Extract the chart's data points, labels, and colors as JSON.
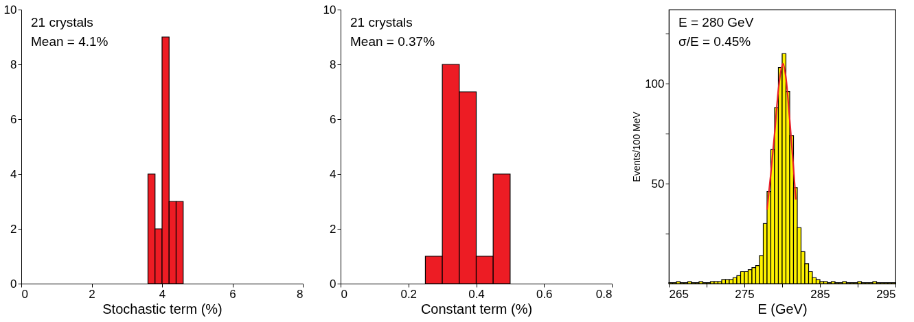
{
  "chart_data": [
    {
      "type": "histogram",
      "xlabel": "Stochastic term (%)",
      "annotations": [
        "21 crystals",
        "Mean = 4.1%"
      ],
      "bins": [
        3.6,
        3.8,
        4.0,
        4.2,
        4.4,
        4.6
      ],
      "values": [
        4,
        2,
        9,
        3,
        3
      ],
      "color": "#ed1c24",
      "xlim": [
        0,
        8
      ],
      "xticks": [
        0,
        2,
        4,
        6,
        8
      ],
      "ylim": [
        0,
        10
      ],
      "yticks": [
        0,
        2,
        4,
        6,
        8,
        10
      ]
    },
    {
      "type": "histogram",
      "xlabel": "Constant term (%)",
      "annotations": [
        "21 crystals",
        "Mean = 0.37%"
      ],
      "bins": [
        0.25,
        0.3,
        0.35,
        0.4,
        0.45,
        0.5
      ],
      "values": [
        1,
        8,
        7,
        1,
        4
      ],
      "color": "#ed1c24",
      "xlim": [
        0,
        0.8
      ],
      "xticks": [
        0,
        0.2,
        0.4,
        0.6,
        0.8
      ],
      "ylim": [
        0,
        10
      ],
      "yticks": [
        0,
        2,
        4,
        6,
        8,
        10
      ]
    },
    {
      "type": "histogram",
      "xlabel": "E (GeV)",
      "ylabel": "Events/100 MeV",
      "annotations": [
        "E = 280 GeV",
        "σ/E = 0.45%"
      ],
      "xlim": [
        265,
        295
      ],
      "xticks": [
        265,
        {
          "value": 270,
          "label": null
        },
        275,
        {
          "value": 280,
          "label": null
        },
        285,
        {
          "value": 290,
          "label": null
        },
        295
      ],
      "ylim": [
        0,
        137
      ],
      "yticks": [
        {
          "value": 25,
          "label": null
        },
        50,
        {
          "value": 75,
          "label": null
        },
        100,
        {
          "value": 125,
          "label": null
        }
      ],
      "series": [
        {
          "type": "histogram",
          "color": "#fff200",
          "bins": [
            265,
            265.5,
            266,
            266.5,
            267,
            267.5,
            268,
            268.5,
            269,
            269.5,
            270,
            270.5,
            271,
            271.5,
            272,
            272.5,
            273,
            273.5,
            274,
            274.5,
            275,
            275.5,
            276,
            276.5,
            277,
            277.5,
            278,
            278.5,
            279,
            279.5,
            280,
            280.5,
            281,
            281.5,
            282,
            282.5,
            283,
            283.5,
            284,
            284.5,
            285,
            285.5,
            286,
            286.5,
            287,
            287.5,
            288,
            288.5,
            289,
            289.5,
            290,
            290.5,
            291,
            291.5,
            292,
            292.5,
            293,
            293.5,
            294,
            294.5,
            295
          ],
          "values": [
            0.5,
            0.5,
            1,
            0.5,
            0.5,
            1,
            0.5,
            0.5,
            1,
            0.5,
            0.5,
            1,
            1,
            1,
            2,
            2,
            2,
            3,
            4,
            6,
            6,
            7,
            8,
            9,
            14,
            30,
            46,
            67,
            88,
            108,
            115,
            96,
            74,
            48,
            28,
            16,
            10,
            6,
            3,
            2,
            1,
            1,
            0.5,
            1,
            0.5,
            0.5,
            1,
            0.5,
            0.5,
            0.5,
            1,
            0.5,
            0.5,
            0.5,
            1,
            0.5,
            0.5,
            0.5,
            0.5,
            0.5
          ]
        },
        {
          "type": "line",
          "color": "#e8202a",
          "x": [
            278.0,
            278.5,
            279.0,
            279.5,
            280.0,
            280.1,
            280.5,
            281.0,
            281.5,
            281.8
          ],
          "values": [
            37,
            55,
            75,
            97,
            109,
            110,
            103,
            82,
            58,
            42
          ]
        }
      ]
    }
  ]
}
